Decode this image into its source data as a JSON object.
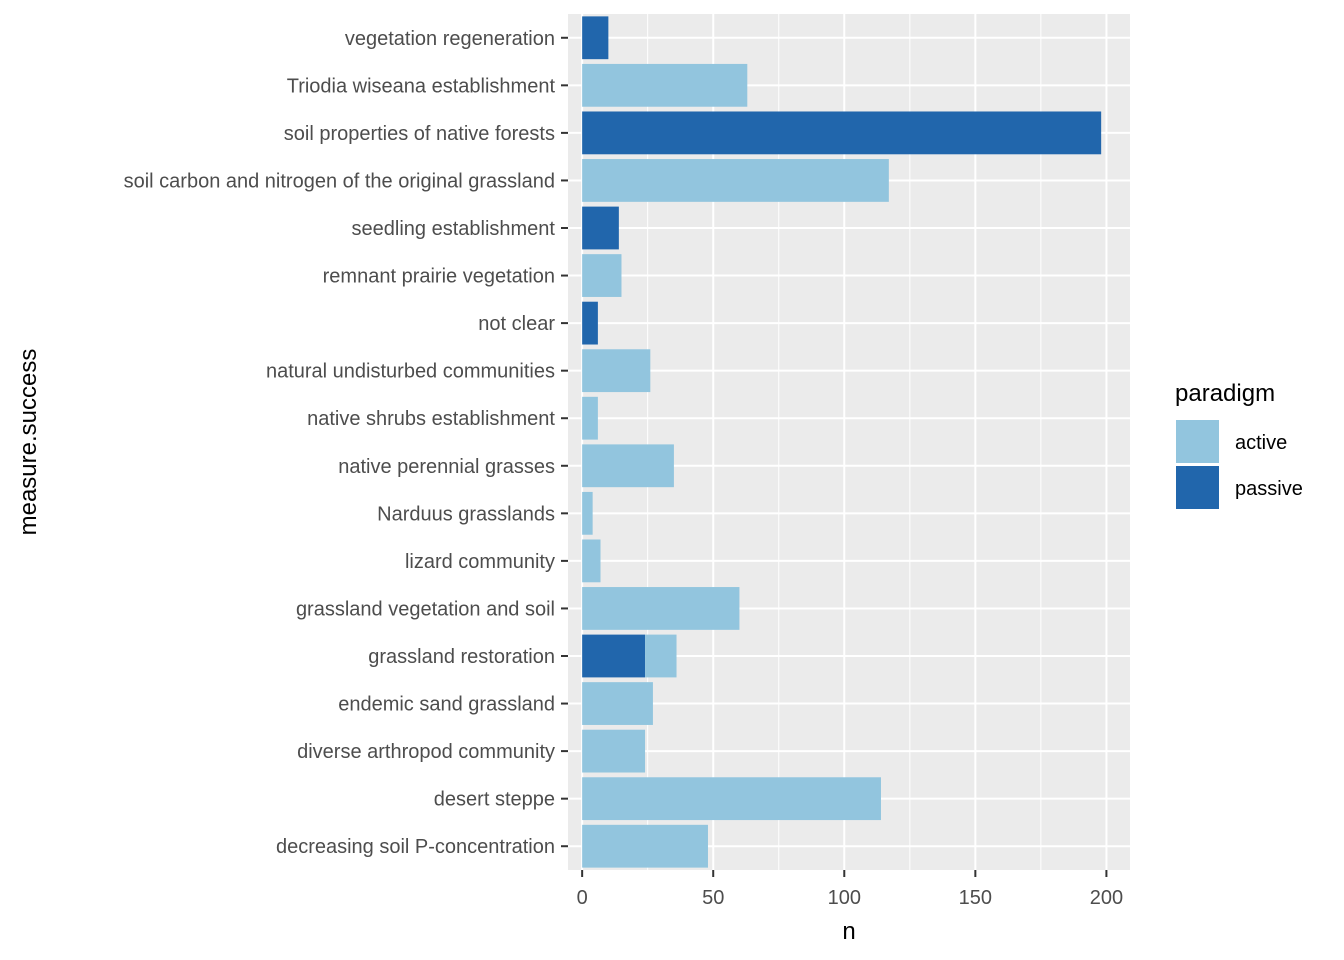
{
  "chart_data": {
    "type": "bar",
    "orientation": "horizontal",
    "stacked": true,
    "xlabel": "n",
    "ylabel": "measure.success",
    "xlim": [
      -5.4,
      209
    ],
    "x_ticks": [
      0,
      50,
      100,
      150,
      200
    ],
    "categories": [
      "vegetation regeneration",
      "Triodia wiseana establishment",
      "soil properties of native forests",
      "soil carbon and nitrogen of the original grassland",
      "seedling establishment",
      "remnant prairie vegetation",
      "not clear",
      "natural undisturbed communities",
      "native shrubs establishment",
      "native perennial grasses",
      "Narduus grasslands",
      "lizard community",
      "grassland vegetation and soil",
      "grassland restoration",
      "endemic sand grassland",
      "diverse arthropod community",
      "desert steppe",
      "decreasing soil P-concentration"
    ],
    "series": [
      {
        "name": "passive",
        "color": "#2166ac",
        "values": [
          10,
          0,
          198,
          0,
          14,
          0,
          6,
          0,
          0,
          0,
          0,
          0,
          0,
          24,
          0,
          0,
          0,
          0
        ]
      },
      {
        "name": "active",
        "color": "#92c5de",
        "values": [
          0,
          63,
          0,
          117,
          0,
          15,
          0,
          26,
          6,
          35,
          4,
          7,
          60,
          12,
          27,
          24,
          114,
          48
        ]
      }
    ],
    "legend": {
      "title": "paradigm",
      "position": "right",
      "entries": [
        {
          "label": "active",
          "color": "#92c5de"
        },
        {
          "label": "passive",
          "color": "#2166ac"
        }
      ]
    },
    "grid": true,
    "panel_background": "#ebebeb"
  }
}
